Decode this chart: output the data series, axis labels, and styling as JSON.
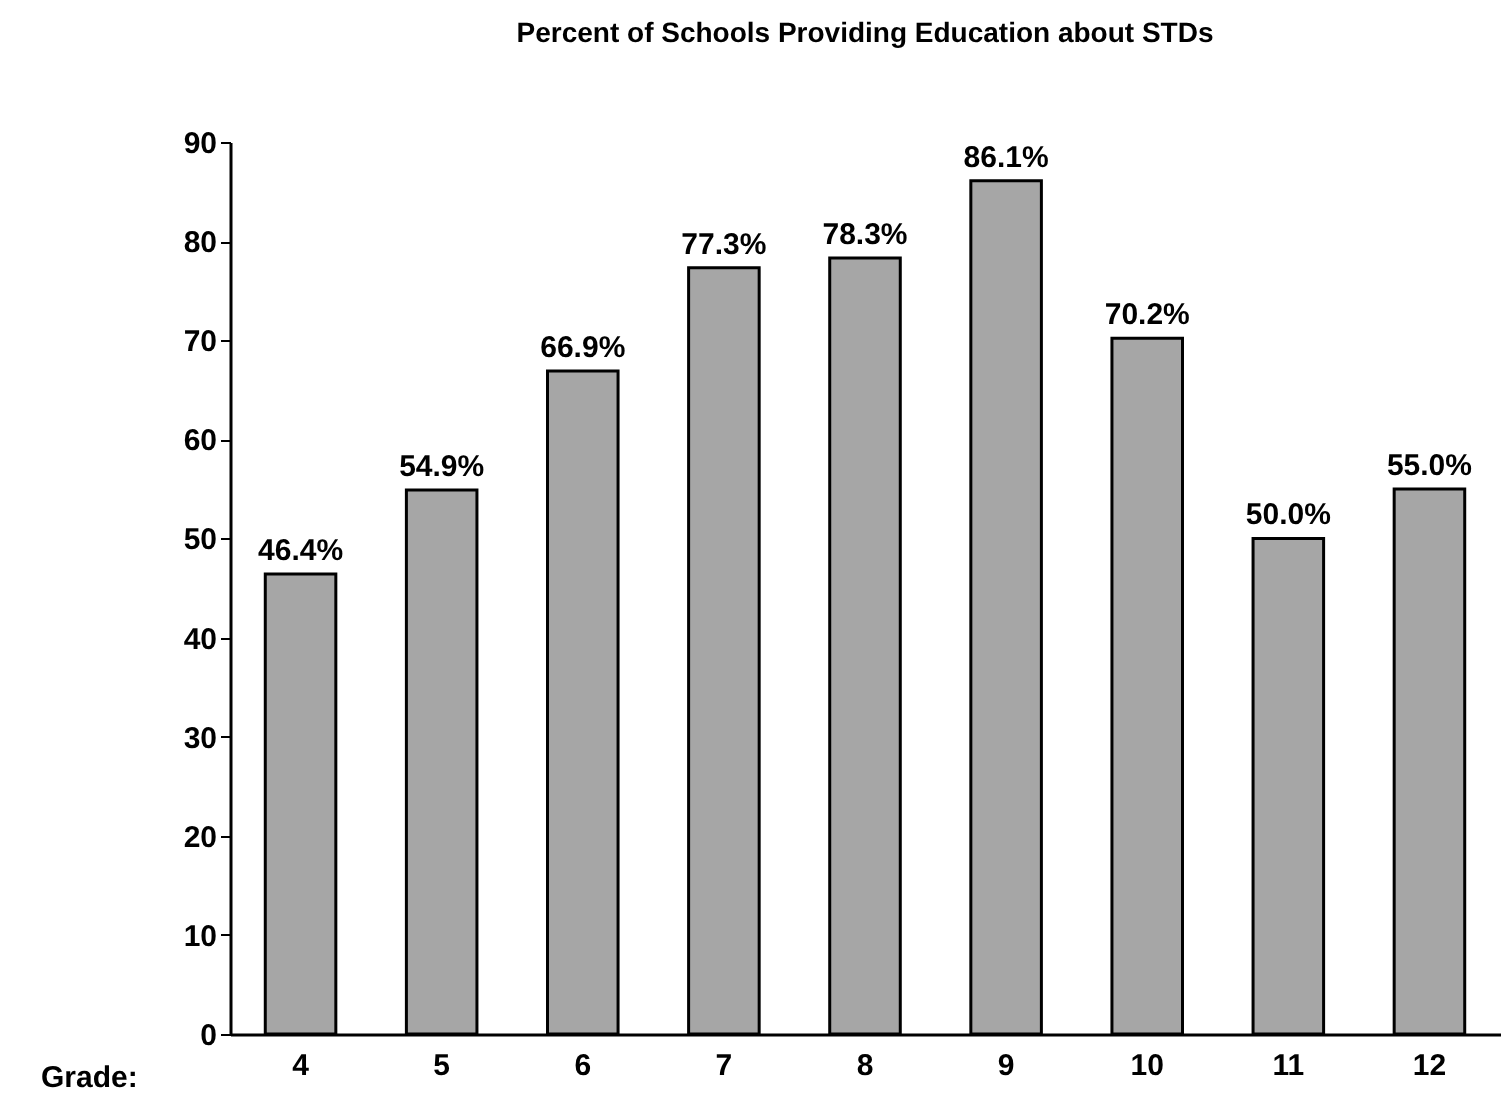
{
  "chart_data": {
    "type": "bar",
    "title": "Percent of Schools Providing Education about STDs",
    "xlabel": "Grade:",
    "categories": [
      "4",
      "5",
      "6",
      "7",
      "8",
      "9",
      "10",
      "11",
      "12"
    ],
    "values": [
      46.4,
      54.9,
      66.9,
      77.3,
      78.3,
      86.1,
      70.2,
      50.0,
      55.0
    ],
    "value_labels": [
      "46.4%",
      "54.9%",
      "66.9%",
      "77.3%",
      "78.3%",
      "86.1%",
      "70.2%",
      "50.0%",
      "55.0%"
    ],
    "color": "#a6a6a6",
    "ylim": [
      0,
      90
    ],
    "yticks": [
      0,
      10,
      20,
      30,
      40,
      50,
      60,
      70,
      80,
      90
    ],
    "grid": false
  }
}
